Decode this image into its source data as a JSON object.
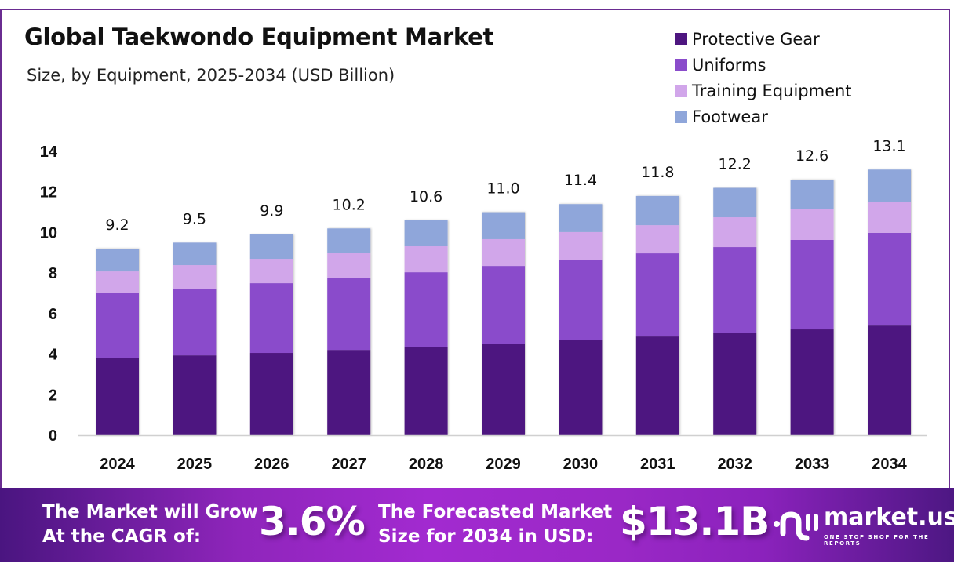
{
  "header": {
    "title": "Global Taekwondo Equipment Market",
    "subtitle": "Size, by Equipment, 2025-2034 (USD Billion)"
  },
  "legend": [
    {
      "label": "Protective Gear",
      "color": "#4e1680"
    },
    {
      "label": "Uniforms",
      "color": "#8a4ccb"
    },
    {
      "label": "Training Equipment",
      "color": "#d1a6ea"
    },
    {
      "label": "Footwear",
      "color": "#8fa6da"
    }
  ],
  "chart_data": {
    "type": "bar",
    "stacked": true,
    "title": "Global Taekwondo Equipment Market",
    "subtitle": "Size, by Equipment, 2025-2034 (USD Billion)",
    "xlabel": "",
    "ylabel": "",
    "ylim": [
      0,
      14
    ],
    "yticks": [
      "0",
      "2",
      "4",
      "6",
      "8",
      "10",
      "12",
      "14"
    ],
    "grid": false,
    "legend_position": "top-right",
    "categories": [
      "2024",
      "2025",
      "2026",
      "2027",
      "2028",
      "2029",
      "2030",
      "2031",
      "2032",
      "2033",
      "2034"
    ],
    "totals": [
      "9.2",
      "9.5",
      "9.9",
      "10.2",
      "10.6",
      "11.0",
      "11.4",
      "11.8",
      "12.2",
      "12.6",
      "13.1"
    ],
    "series": [
      {
        "name": "Protective Gear",
        "color": "#4e1680",
        "values": [
          3.79,
          3.94,
          4.06,
          4.21,
          4.37,
          4.52,
          4.68,
          4.87,
          5.03,
          5.22,
          5.41
        ]
      },
      {
        "name": "Uniforms",
        "color": "#8a4ccb",
        "values": [
          3.21,
          3.29,
          3.44,
          3.56,
          3.67,
          3.83,
          3.98,
          4.1,
          4.25,
          4.41,
          4.57
        ]
      },
      {
        "name": "Training Equipment",
        "color": "#d1a6ea",
        "values": [
          1.08,
          1.16,
          1.2,
          1.23,
          1.28,
          1.32,
          1.36,
          1.39,
          1.47,
          1.51,
          1.54
        ]
      },
      {
        "name": "Footwear",
        "color": "#8fa6da",
        "values": [
          1.12,
          1.11,
          1.2,
          1.2,
          1.28,
          1.33,
          1.38,
          1.44,
          1.45,
          1.46,
          1.58
        ]
      }
    ]
  },
  "banner": {
    "cagr_label_line1": "The Market will Grow",
    "cagr_label_line2": "At the CAGR of:",
    "cagr_value": "3.6%",
    "forecast_label_line1": "The Forecasted Market",
    "forecast_label_line2": "Size for 2034 in USD:",
    "forecast_value": "$13.1B",
    "logo_name": "market.us",
    "logo_tagline": "ONE STOP SHOP FOR THE REPORTS"
  }
}
